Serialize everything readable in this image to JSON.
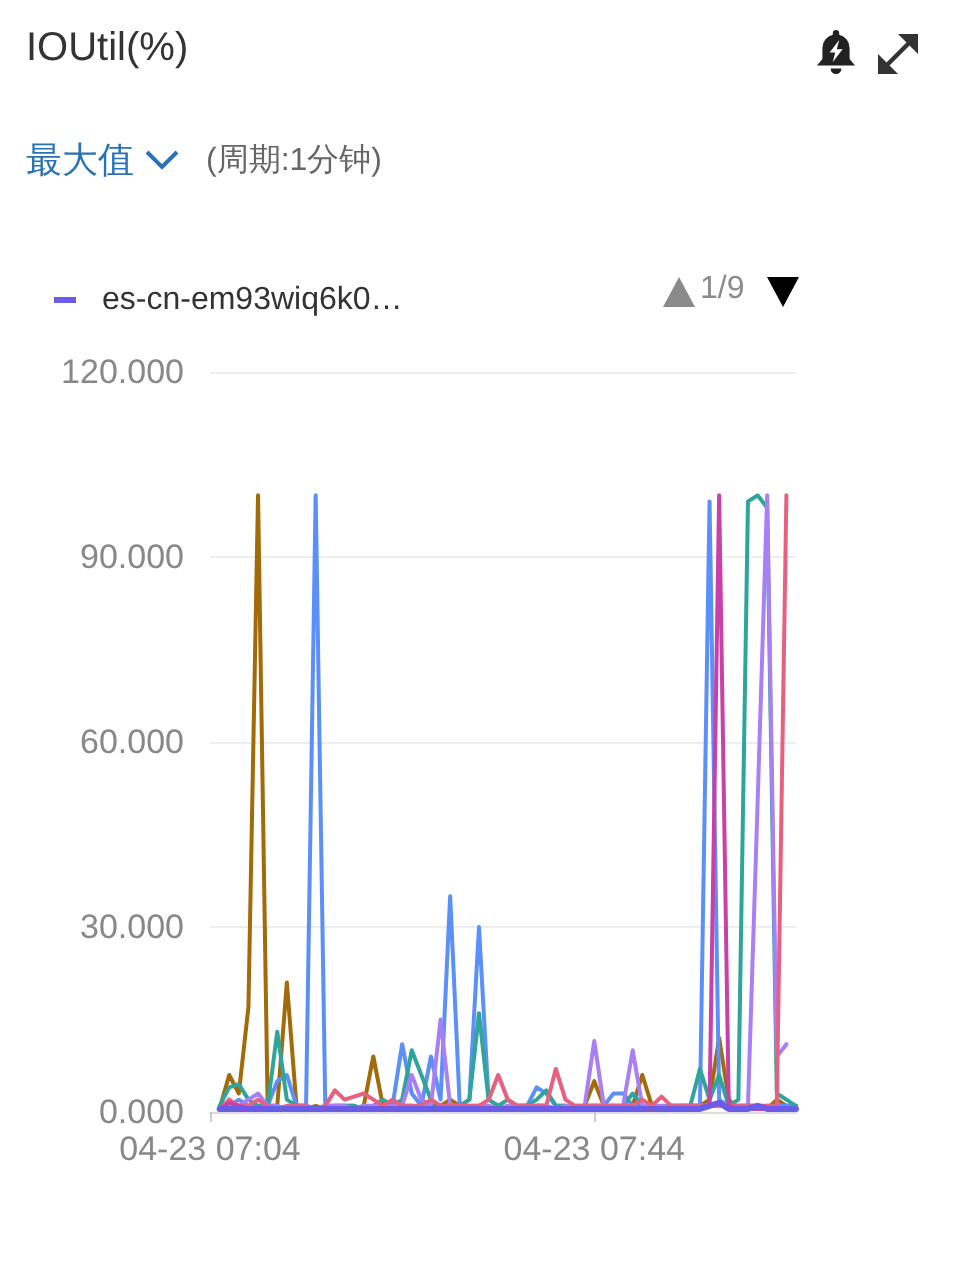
{
  "chart_data": {
    "type": "line",
    "title": "IOUtil(%)",
    "subtitle": "(周期:1分钟)",
    "annotations": [
      "最大值",
      "1/9"
    ],
    "x": [
      "--04-23T07:05",
      "--04-23T07:06",
      "--04-23T07:07",
      "--04-23T07:08",
      "--04-23T07:09",
      "--04-23T07:10",
      "--04-23T07:11",
      "--04-23T07:12",
      "--04-23T07:13",
      "--04-23T07:14",
      "--04-23T07:15",
      "--04-23T07:16",
      "--04-23T07:17",
      "--04-23T07:18",
      "--04-23T07:19",
      "--04-23T07:20",
      "--04-23T07:21",
      "--04-23T07:22",
      "--04-23T07:23",
      "--04-23T07:24",
      "--04-23T07:25",
      "--04-23T07:26",
      "--04-23T07:27",
      "--04-23T07:28",
      "--04-23T07:29",
      "--04-23T07:30",
      "--04-23T07:31",
      "--04-23T07:32",
      "--04-23T07:33",
      "--04-23T07:34",
      "--04-23T07:35",
      "--04-23T07:36",
      "--04-23T07:37",
      "--04-23T07:38",
      "--04-23T07:39",
      "--04-23T07:40",
      "--04-23T07:41",
      "--04-23T07:42",
      "--04-23T07:43",
      "--04-23T07:44",
      "--04-23T07:45",
      "--04-23T07:46",
      "--04-23T07:47",
      "--04-23T07:48",
      "--04-23T07:49",
      "--04-23T07:50",
      "--04-23T07:51",
      "--04-23T07:52",
      "--04-23T07:53",
      "--04-23T07:54",
      "--04-23T07:55",
      "--04-23T07:56",
      "--04-23T07:57",
      "--04-23T07:58",
      "--04-23T07:59",
      "--04-23T08:00",
      "--04-23T08:01",
      "--04-23T08:02",
      "--04-23T08:03",
      "--04-23T08:04",
      "--04-23T08:05"
    ],
    "series": [
      {
        "name": "es-cn-em93wiq6k0…",
        "color": "#6b5ce7",
        "values": [
          0.5,
          0.5,
          0.5,
          0.5,
          0.5,
          0.5,
          0.5,
          0.5,
          0.5,
          0.5,
          0.5,
          0.5,
          0.5,
          0.5,
          0.5,
          0.5,
          0.5,
          0.5,
          0.5,
          0.5,
          0.5,
          0.5,
          0.5,
          0.5,
          0.5,
          0.5,
          0.5,
          0.5,
          0.5,
          0.5,
          0.5,
          0.5,
          0.5,
          0.5,
          0.5,
          0.5,
          0.5,
          0.5,
          0.5,
          0.5,
          0.5,
          0.5,
          0.5,
          0.5,
          0.5,
          0.5,
          0.5,
          0.5,
          0.5,
          0.5,
          0.5,
          1,
          1.5,
          0.5,
          0.5,
          0.5,
          1,
          0.5,
          0.5,
          0.5,
          0.5
        ]
      },
      {
        "color": "#a36a0a",
        "values": [
          0.5,
          6,
          3,
          17,
          100,
          1,
          1,
          21,
          1,
          0.5,
          1,
          0.5,
          1,
          1,
          0.5,
          1,
          9,
          1,
          0.5,
          1,
          1,
          0.5,
          1,
          1,
          2,
          1,
          0.5,
          1,
          1,
          0.5,
          1,
          1,
          0.5,
          1,
          1,
          0.5,
          1,
          0.5,
          1,
          5,
          1,
          0.5,
          1,
          1,
          6,
          1,
          0.5,
          1,
          0.5,
          1,
          1,
          2,
          12,
          2,
          0.5,
          1,
          1,
          0.5,
          2,
          1,
          1
        ]
      },
      {
        "color": "#5b8ff9",
        "values": [
          0.5,
          1,
          2,
          1,
          1,
          1,
          5,
          6,
          1,
          1,
          100,
          1,
          0.5,
          1,
          1,
          0.5,
          1,
          1,
          1,
          11,
          3,
          1,
          9,
          2,
          35,
          1,
          2,
          30,
          2,
          1,
          0.5,
          1,
          1,
          4,
          3,
          1,
          1,
          0.5,
          1,
          1,
          1,
          3,
          3,
          1,
          1,
          0.5,
          1,
          1,
          1,
          1,
          1,
          99,
          2,
          1,
          1,
          1,
          0.5,
          1,
          1,
          1,
          1
        ]
      },
      {
        "color": "#2fa59a",
        "values": [
          1,
          4,
          4.5,
          2,
          1,
          1,
          13,
          2,
          1,
          1,
          0.5,
          1,
          1,
          1,
          1,
          0.5,
          1,
          2,
          1,
          2,
          10,
          6,
          2,
          1,
          1,
          1,
          2,
          16,
          2,
          1,
          2,
          1,
          1,
          2,
          3.5,
          1,
          1,
          0.5,
          1,
          1,
          1,
          1,
          1,
          3,
          1,
          1,
          0.5,
          1,
          1,
          1,
          7,
          2,
          6,
          1,
          2,
          99,
          100,
          98,
          3,
          2,
          1
        ]
      },
      {
        "color": "#a97ff5",
        "values": [
          0.5,
          1,
          1,
          2,
          3,
          1,
          1,
          0.5,
          1,
          1,
          0.5,
          1,
          1,
          1,
          0.5,
          1,
          1,
          1,
          1,
          1,
          6,
          2,
          1,
          15,
          1,
          1,
          1,
          1,
          1,
          0.5,
          1,
          1,
          1,
          1,
          1,
          0.5,
          1,
          1,
          1,
          11.5,
          1,
          1,
          1,
          10,
          1,
          1,
          1,
          0.5,
          1,
          1,
          1,
          1,
          1,
          1,
          1,
          1,
          50,
          100,
          9,
          11,
          null
        ]
      },
      {
        "color": "#e8607f",
        "values": [
          0.5,
          2,
          1,
          1,
          2,
          1,
          0.5,
          1,
          1,
          1,
          0.5,
          1,
          3.5,
          2,
          2.5,
          3,
          2,
          1,
          2,
          1,
          1,
          1,
          2,
          1,
          1,
          1,
          1,
          1,
          2,
          6,
          2,
          1,
          1,
          1,
          1,
          7,
          2,
          1,
          1,
          1,
          1,
          1,
          1,
          1,
          2,
          1,
          2.5,
          1,
          1,
          1,
          1,
          1,
          1,
          1,
          1,
          1,
          1,
          1,
          1,
          100,
          null
        ]
      },
      {
        "color": "#c940a8",
        "values": [
          0.5,
          1.5,
          1,
          0.5,
          0.5,
          0.5,
          0.5,
          0.5,
          0.5,
          0.5,
          0.5,
          0.5,
          0.5,
          0.5,
          0.5,
          0.5,
          0.5,
          0.5,
          0.5,
          0.5,
          0.5,
          0.5,
          0.5,
          0.5,
          0.5,
          0.5,
          0.5,
          0.5,
          0.5,
          0.5,
          0.5,
          0.5,
          0.5,
          0.5,
          0.5,
          0.5,
          0.5,
          0.5,
          0.5,
          0.5,
          0.5,
          0.5,
          0.5,
          0.5,
          0.5,
          0.5,
          0.5,
          0.5,
          0.5,
          0.5,
          0.5,
          1,
          100,
          1,
          0.5,
          0.5,
          0.5,
          0.5,
          0.5,
          0.5,
          0.5
        ]
      }
    ],
    "xlim": [
      "--04-23T07:04",
      "--04-23T08:05"
    ],
    "xticks": [
      {
        "value": "--04-23T07:04",
        "label": "04-23 07:04"
      },
      {
        "value": "--04-23T07:44",
        "label": "04-23 07:44"
      }
    ],
    "ylim": [
      0,
      120
    ],
    "yticks": [
      {
        "value": 0,
        "label": "0.000"
      },
      {
        "value": 30,
        "label": "30.000"
      },
      {
        "value": 60,
        "label": "60.000"
      },
      {
        "value": 90,
        "label": "90.000"
      },
      {
        "value": 120,
        "label": "120.000"
      }
    ],
    "grid": "y",
    "legend": "top left",
    "marker": "none",
    "line_style": "solid"
  }
}
